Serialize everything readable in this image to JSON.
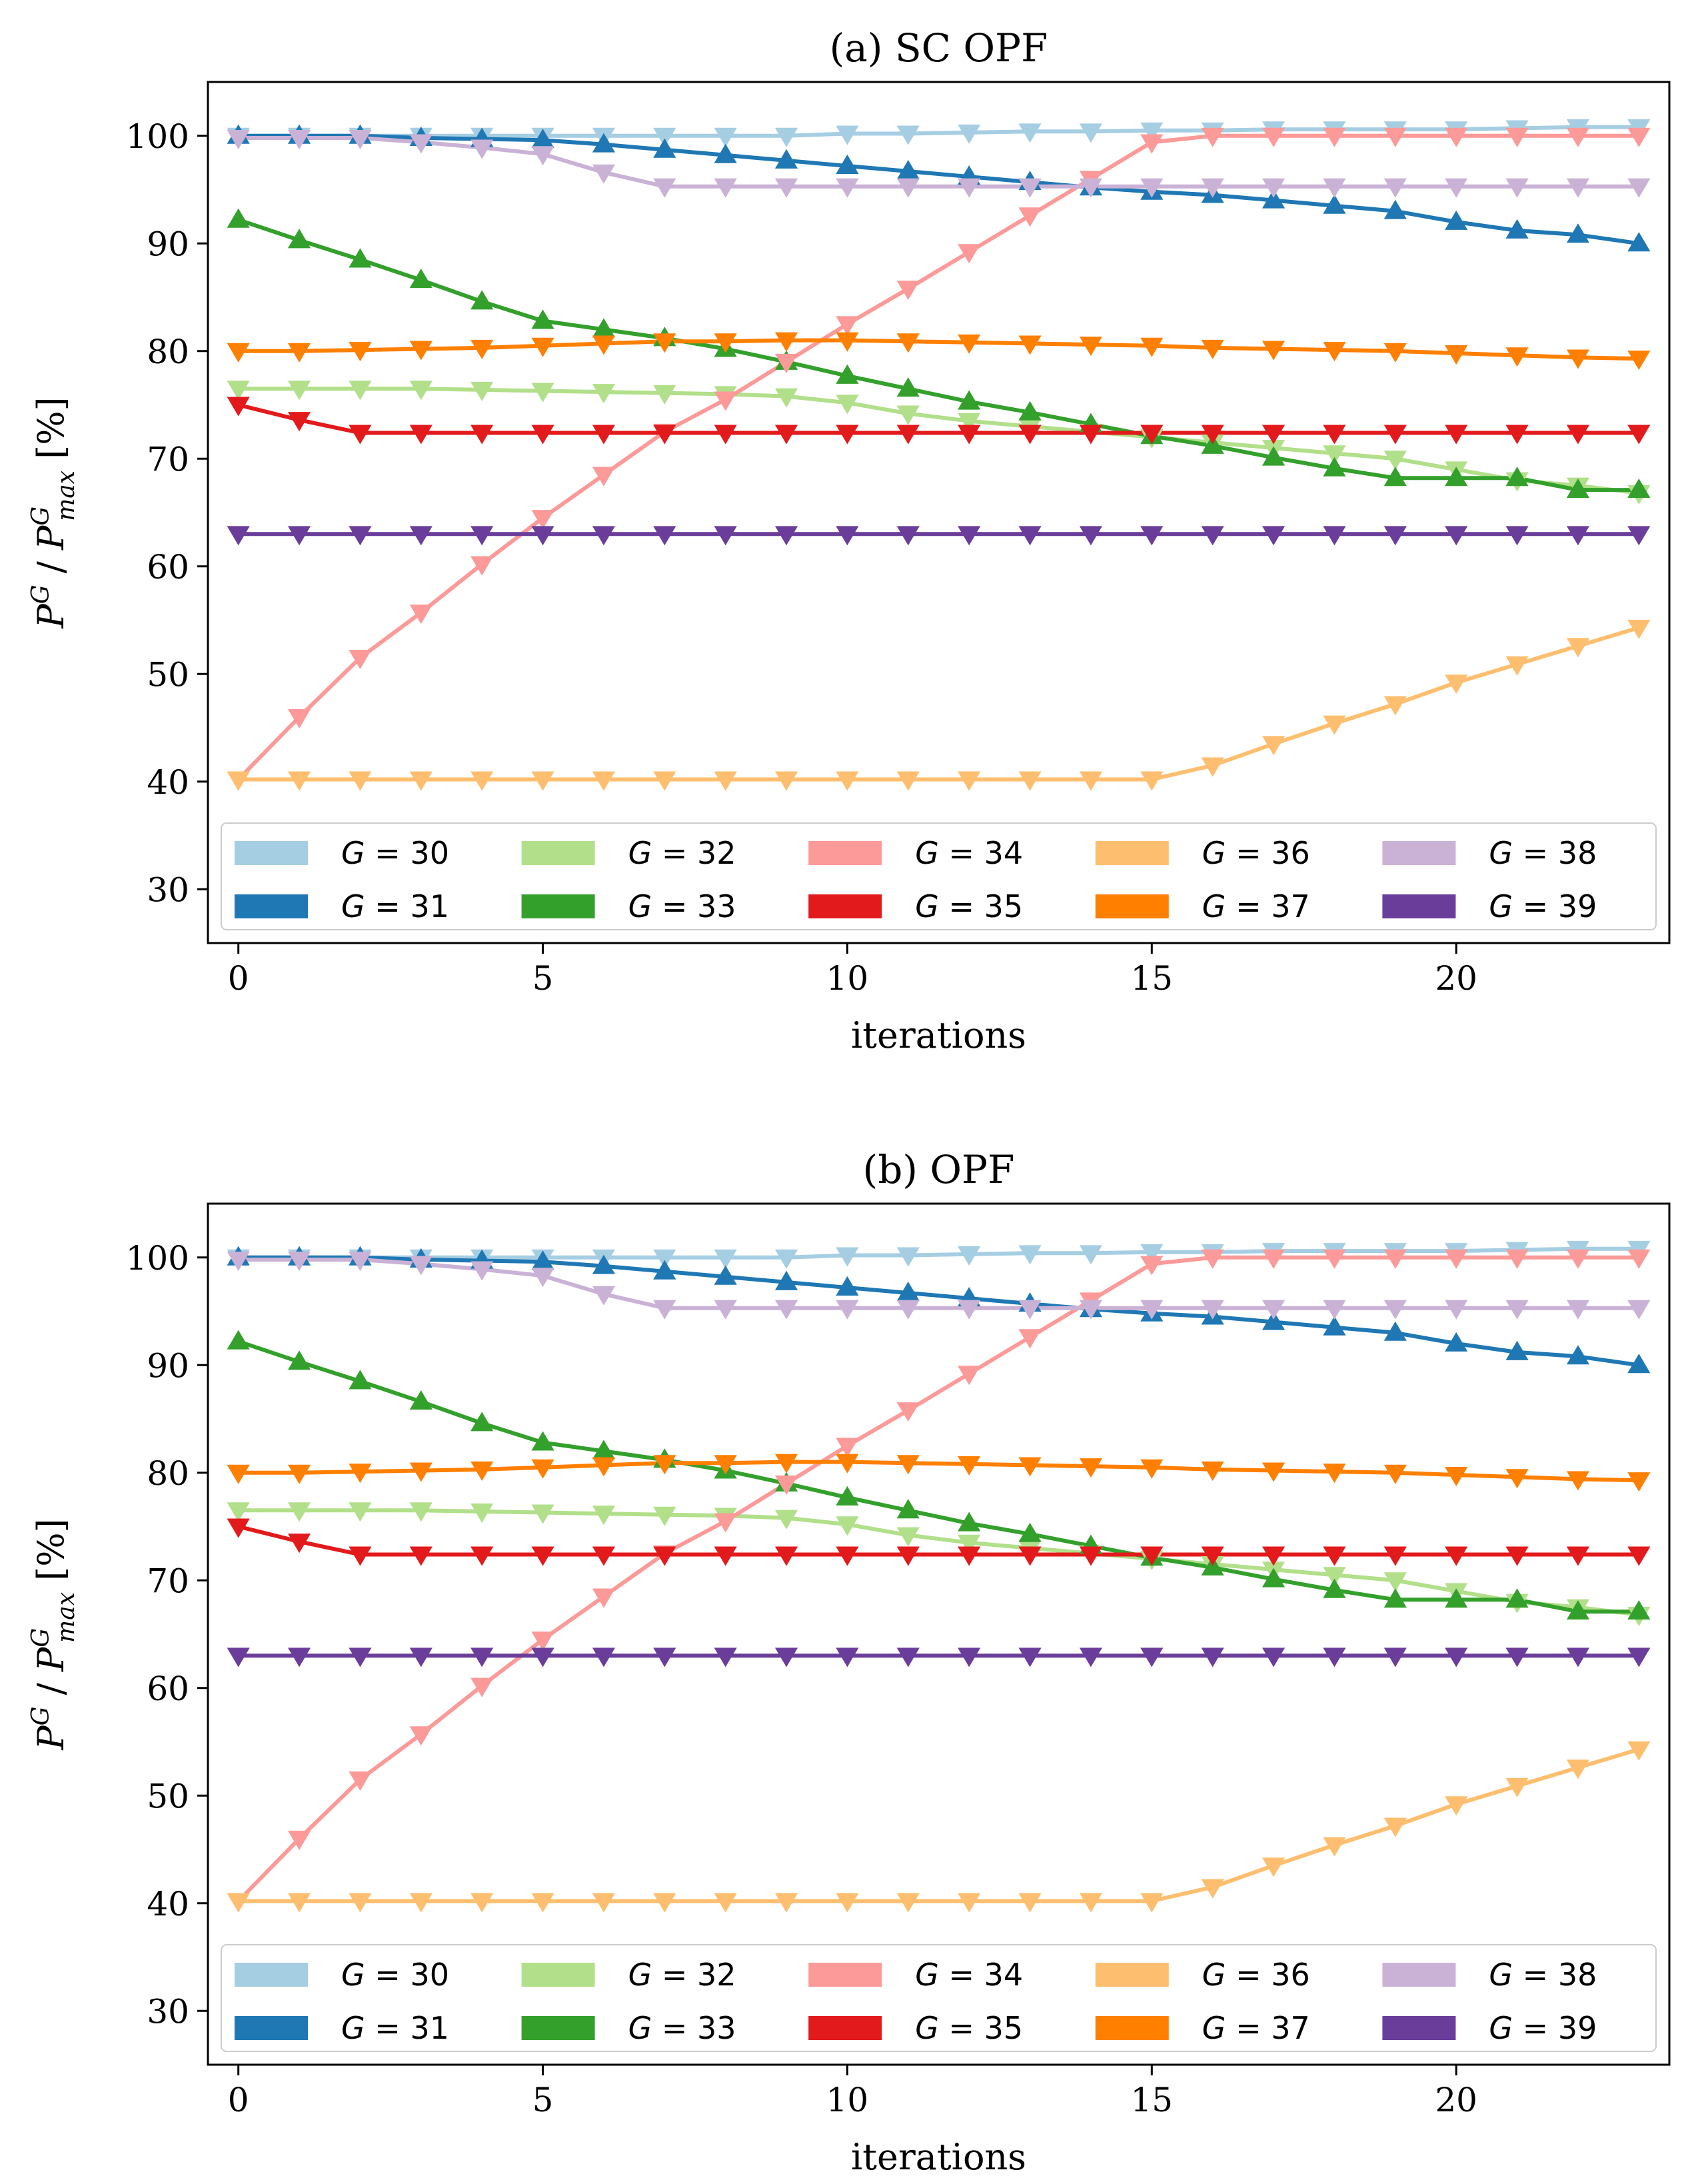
{
  "chart_data": [
    {
      "type": "line",
      "title": "(a) SC OPF",
      "xlabel": "iterations",
      "ylabel": "P^G / P^G_max [%]",
      "ylabel_parts": {
        "p1": "P",
        "sup1": "G",
        "sep": " / ",
        "p2": "P",
        "sup2": "G",
        "sub2": "max",
        "unit": " [%]"
      },
      "xlim": [
        -0.5,
        23.5
      ],
      "ylim": [
        25,
        105
      ],
      "xticks": [
        0,
        5,
        10,
        15,
        20
      ],
      "yticks": [
        30,
        40,
        50,
        60,
        70,
        80,
        90,
        100
      ],
      "legend": {
        "placement": "lower-center",
        "ncol": 5
      },
      "series": [
        {
          "name": "G = 30",
          "g": "30",
          "color": "#a6cee3",
          "marker": "v",
          "values": [
            100,
            100,
            100,
            100,
            100,
            100,
            100,
            100,
            100,
            100,
            100.2,
            100.2,
            100.3,
            100.4,
            100.4,
            100.5,
            100.5,
            100.6,
            100.6,
            100.6,
            100.6,
            100.7,
            100.8,
            100.8
          ]
        },
        {
          "name": "G = 31",
          "g": "31",
          "color": "#1f78b4",
          "marker": "^",
          "values": [
            100,
            100,
            100,
            99.8,
            99.7,
            99.6,
            99.2,
            98.7,
            98.2,
            97.7,
            97.2,
            96.7,
            96.2,
            95.7,
            95.2,
            94.8,
            94.5,
            94.0,
            93.5,
            93.0,
            92.0,
            91.2,
            90.8,
            90.0
          ]
        },
        {
          "name": "G = 32",
          "g": "32",
          "color": "#b2df8a",
          "marker": "v",
          "values": [
            76.5,
            76.5,
            76.5,
            76.5,
            76.4,
            76.3,
            76.2,
            76.1,
            76.0,
            75.8,
            75.2,
            74.2,
            73.5,
            73.0,
            72.5,
            72.0,
            71.5,
            71.0,
            70.5,
            70.0,
            69.0,
            68.0,
            67.5,
            66.8
          ]
        },
        {
          "name": "G = 33",
          "g": "33",
          "color": "#33a02c",
          "marker": "^",
          "values": [
            92.2,
            90.3,
            88.5,
            86.6,
            84.6,
            82.8,
            82.0,
            81.2,
            80.2,
            79.0,
            77.7,
            76.5,
            75.3,
            74.3,
            73.2,
            72.1,
            71.2,
            70.1,
            69.1,
            68.2,
            68.2,
            68.2,
            67.1,
            67.1
          ]
        },
        {
          "name": "G = 34",
          "g": "34",
          "color": "#fb9a99",
          "marker": "v",
          "values": [
            40.2,
            46.0,
            51.5,
            55.7,
            60.2,
            64.5,
            68.5,
            72.5,
            75.5,
            79.0,
            82.5,
            85.8,
            89.2,
            92.6,
            96.0,
            99.4,
            100,
            100,
            100,
            100,
            100,
            100,
            100,
            100
          ]
        },
        {
          "name": "G = 35",
          "g": "35",
          "color": "#e31a1c",
          "marker": "v",
          "values": [
            75.0,
            73.6,
            72.4,
            72.4,
            72.4,
            72.4,
            72.4,
            72.4,
            72.4,
            72.4,
            72.4,
            72.4,
            72.4,
            72.4,
            72.4,
            72.4,
            72.4,
            72.4,
            72.4,
            72.4,
            72.4,
            72.4,
            72.4,
            72.4
          ]
        },
        {
          "name": "G = 36",
          "g": "36",
          "color": "#fdbf6f",
          "marker": "v",
          "values": [
            40.2,
            40.2,
            40.2,
            40.2,
            40.2,
            40.2,
            40.2,
            40.2,
            40.2,
            40.2,
            40.2,
            40.2,
            40.2,
            40.2,
            40.2,
            40.2,
            41.5,
            43.5,
            45.4,
            47.2,
            49.2,
            50.9,
            52.6,
            54.3
          ]
        },
        {
          "name": "G = 37",
          "g": "37",
          "color": "#ff7f00",
          "marker": "v",
          "values": [
            80.0,
            80.0,
            80.1,
            80.2,
            80.3,
            80.5,
            80.7,
            80.9,
            80.9,
            81.0,
            81.0,
            80.9,
            80.8,
            80.7,
            80.6,
            80.5,
            80.3,
            80.2,
            80.1,
            80.0,
            79.8,
            79.6,
            79.4,
            79.3
          ]
        },
        {
          "name": "G = 38",
          "g": "38",
          "color": "#cab2d6",
          "marker": "v",
          "values": [
            99.8,
            99.8,
            99.8,
            99.4,
            98.9,
            98.3,
            96.6,
            95.3,
            95.3,
            95.3,
            95.3,
            95.3,
            95.3,
            95.3,
            95.3,
            95.3,
            95.3,
            95.3,
            95.3,
            95.3,
            95.3,
            95.3,
            95.3,
            95.3
          ]
        },
        {
          "name": "G = 39",
          "g": "39",
          "color": "#6a3d9a",
          "marker": "v",
          "values": [
            63.0,
            63.0,
            63.0,
            63.0,
            63.0,
            63.0,
            63.0,
            63.0,
            63.0,
            63.0,
            63.0,
            63.0,
            63.0,
            63.0,
            63.0,
            63.0,
            63.0,
            63.0,
            63.0,
            63.0,
            63.0,
            63.0,
            63.0,
            63.0
          ]
        }
      ]
    },
    {
      "type": "line",
      "title": "(b) OPF",
      "xlabel": "iterations",
      "ylabel": "P^G / P^G_max [%]",
      "ylabel_parts": {
        "p1": "P",
        "sup1": "G",
        "sep": " / ",
        "p2": "P",
        "sup2": "G",
        "sub2": "max",
        "unit": " [%]"
      },
      "xlim": [
        -0.5,
        23.5
      ],
      "ylim": [
        25,
        105
      ],
      "xticks": [
        0,
        5,
        10,
        15,
        20
      ],
      "yticks": [
        30,
        40,
        50,
        60,
        70,
        80,
        90,
        100
      ],
      "legend": {
        "placement": "lower-center",
        "ncol": 5
      },
      "series": [
        {
          "name": "G = 30",
          "g": "30",
          "color": "#a6cee3",
          "marker": "v",
          "values": [
            100,
            100,
            100,
            100,
            100,
            100,
            100,
            100,
            100,
            100,
            100.2,
            100.2,
            100.3,
            100.4,
            100.4,
            100.5,
            100.5,
            100.6,
            100.6,
            100.6,
            100.6,
            100.7,
            100.8,
            100.8
          ]
        },
        {
          "name": "G = 31",
          "g": "31",
          "color": "#1f78b4",
          "marker": "^",
          "values": [
            100,
            100,
            100,
            99.8,
            99.7,
            99.6,
            99.2,
            98.7,
            98.2,
            97.7,
            97.2,
            96.7,
            96.2,
            95.7,
            95.2,
            94.8,
            94.5,
            94.0,
            93.5,
            93.0,
            92.0,
            91.2,
            90.8,
            90.0
          ]
        },
        {
          "name": "G = 32",
          "g": "32",
          "color": "#b2df8a",
          "marker": "v",
          "values": [
            76.5,
            76.5,
            76.5,
            76.5,
            76.4,
            76.3,
            76.2,
            76.1,
            76.0,
            75.8,
            75.2,
            74.2,
            73.5,
            73.0,
            72.5,
            72.0,
            71.5,
            71.0,
            70.5,
            70.0,
            69.0,
            68.0,
            67.5,
            66.8
          ]
        },
        {
          "name": "G = 33",
          "g": "33",
          "color": "#33a02c",
          "marker": "^",
          "values": [
            92.2,
            90.3,
            88.5,
            86.6,
            84.6,
            82.8,
            82.0,
            81.2,
            80.2,
            79.0,
            77.7,
            76.5,
            75.3,
            74.3,
            73.2,
            72.1,
            71.2,
            70.1,
            69.1,
            68.2,
            68.2,
            68.2,
            67.1,
            67.1
          ]
        },
        {
          "name": "G = 34",
          "g": "34",
          "color": "#fb9a99",
          "marker": "v",
          "values": [
            40.2,
            46.0,
            51.5,
            55.7,
            60.2,
            64.5,
            68.5,
            72.5,
            75.5,
            79.0,
            82.5,
            85.8,
            89.2,
            92.6,
            96.0,
            99.4,
            100,
            100,
            100,
            100,
            100,
            100,
            100,
            100
          ]
        },
        {
          "name": "G = 35",
          "g": "35",
          "color": "#e31a1c",
          "marker": "v",
          "values": [
            75.0,
            73.6,
            72.4,
            72.4,
            72.4,
            72.4,
            72.4,
            72.4,
            72.4,
            72.4,
            72.4,
            72.4,
            72.4,
            72.4,
            72.4,
            72.4,
            72.4,
            72.4,
            72.4,
            72.4,
            72.4,
            72.4,
            72.4,
            72.4
          ]
        },
        {
          "name": "G = 36",
          "g": "36",
          "color": "#fdbf6f",
          "marker": "v",
          "values": [
            40.2,
            40.2,
            40.2,
            40.2,
            40.2,
            40.2,
            40.2,
            40.2,
            40.2,
            40.2,
            40.2,
            40.2,
            40.2,
            40.2,
            40.2,
            40.2,
            41.5,
            43.5,
            45.4,
            47.2,
            49.2,
            50.9,
            52.6,
            54.3
          ]
        },
        {
          "name": "G = 37",
          "g": "37",
          "color": "#ff7f00",
          "marker": "v",
          "values": [
            80.0,
            80.0,
            80.1,
            80.2,
            80.3,
            80.5,
            80.7,
            80.9,
            80.9,
            81.0,
            81.0,
            80.9,
            80.8,
            80.7,
            80.6,
            80.5,
            80.3,
            80.2,
            80.1,
            80.0,
            79.8,
            79.6,
            79.4,
            79.3
          ]
        },
        {
          "name": "G = 38",
          "g": "38",
          "color": "#cab2d6",
          "marker": "v",
          "values": [
            99.8,
            99.8,
            99.8,
            99.4,
            98.9,
            98.3,
            96.6,
            95.3,
            95.3,
            95.3,
            95.3,
            95.3,
            95.3,
            95.3,
            95.3,
            95.3,
            95.3,
            95.3,
            95.3,
            95.3,
            95.3,
            95.3,
            95.3,
            95.3
          ]
        },
        {
          "name": "G = 39",
          "g": "39",
          "color": "#6a3d9a",
          "marker": "v",
          "values": [
            63.0,
            63.0,
            63.0,
            63.0,
            63.0,
            63.0,
            63.0,
            63.0,
            63.0,
            63.0,
            63.0,
            63.0,
            63.0,
            63.0,
            63.0,
            63.0,
            63.0,
            63.0,
            63.0,
            63.0,
            63.0,
            63.0,
            63.0,
            63.0
          ]
        }
      ]
    }
  ]
}
